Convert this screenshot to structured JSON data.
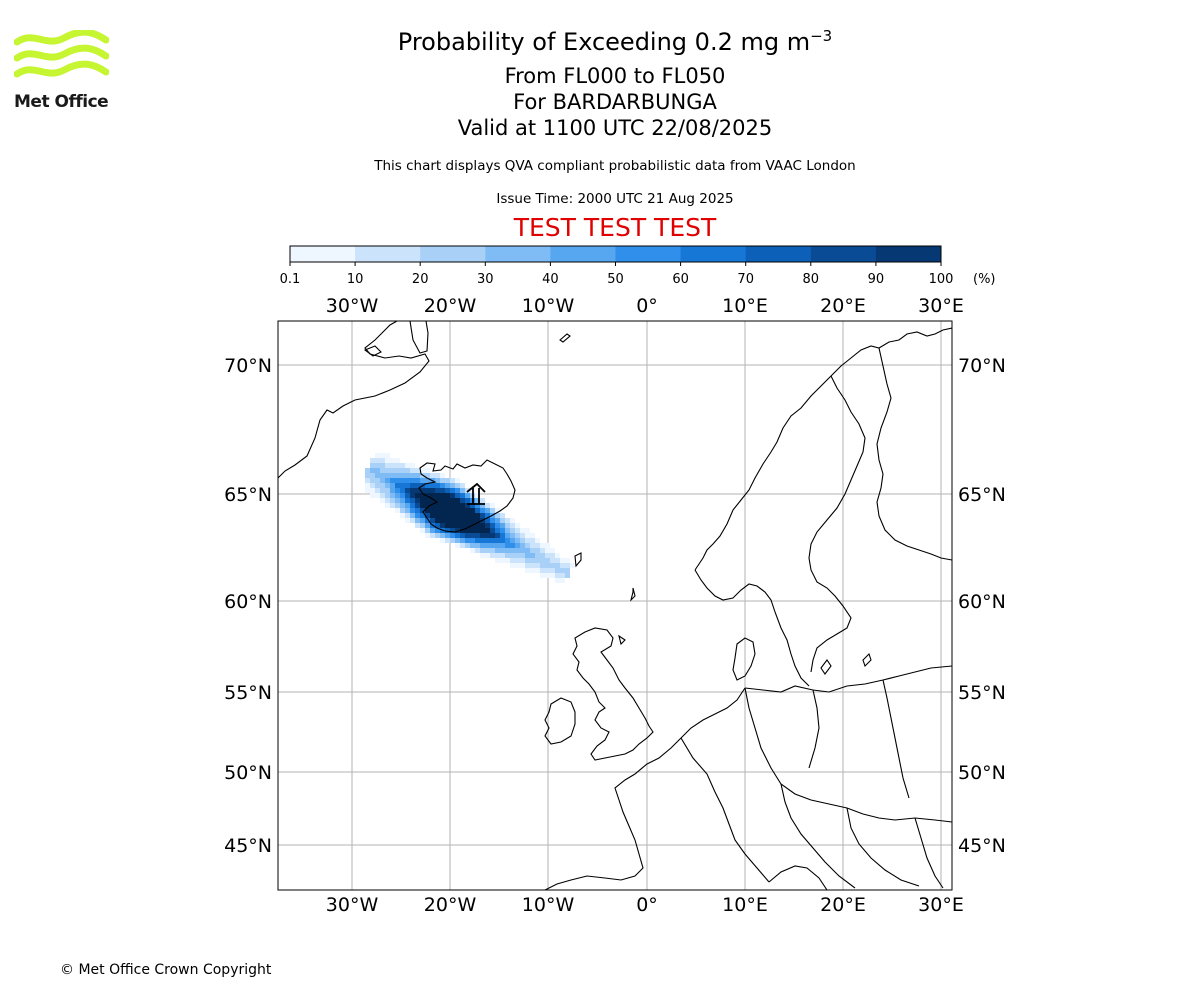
{
  "header": {
    "title_main": "Probability of Exceeding 0.2 mg m",
    "title_exponent": "−3",
    "line1": "From FL000 to FL050",
    "line2": "For BARDARBUNGA",
    "line3": "Valid at 1100 UTC 22/08/2025",
    "note1": "This chart displays QVA compliant probabilistic data from VAAC London",
    "note2": "Issue Time: 2000 UTC 21 Aug 2025",
    "test_banner": "TEST TEST TEST"
  },
  "logo": {
    "text": "Met Office",
    "color": "#c6f532"
  },
  "colorbar": {
    "ticks": [
      "0.1",
      "10",
      "20",
      "30",
      "40",
      "50",
      "60",
      "70",
      "80",
      "90",
      "100"
    ],
    "unit": "(%)",
    "colors": [
      "#eef6ff",
      "#cbe3fb",
      "#a9d1f8",
      "#7fbcf5",
      "#56a6f0",
      "#2f8fea",
      "#1677d6",
      "#0d60b8",
      "#094b94",
      "#063873",
      "#032650"
    ]
  },
  "map": {
    "lon_labels": [
      "30°W",
      "20°W",
      "10°W",
      "0°",
      "10°E",
      "20°E",
      "30°E"
    ],
    "lat_labels": [
      "70°N",
      "65°N",
      "60°N",
      "55°N",
      "50°N",
      "45°N"
    ],
    "volcano": "BARDARBUNGA"
  },
  "footer": {
    "copyright": "© Met Office Crown Copyright"
  }
}
